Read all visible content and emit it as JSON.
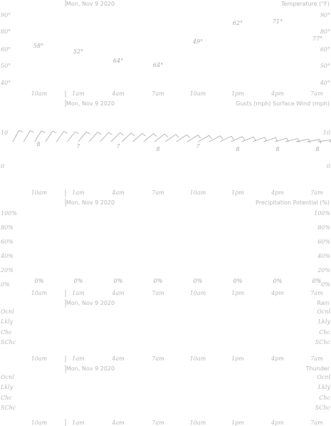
{
  "colors": {
    "text": "#b8b8b8",
    "barb": "#b0b0b0",
    "background": "#ffffff"
  },
  "time_ticks": [
    "10am",
    "1am",
    "4am",
    "7am",
    "10am",
    "1pm",
    "4pm",
    "7am"
  ],
  "date_label": "Mon, Nov 9 2020",
  "chart_data": [
    {
      "type": "line",
      "title": "Temperature (°F)",
      "y_ticks": [
        "90°",
        "80°",
        "60°",
        "50°",
        "40°"
      ],
      "labels": [
        "58°",
        "52°",
        "64°",
        "64°",
        "49°",
        "62°",
        "71°",
        "77°",
        "64°"
      ]
    },
    {
      "type": "wind-barbs",
      "title": "Gusts (mph) Surface Wind (mph)",
      "y_ticks": [
        "10",
        "0"
      ],
      "gust_labels": [
        "8",
        "7",
        "7",
        "8",
        "7",
        "8",
        "8",
        "8"
      ],
      "barb_count": 30
    },
    {
      "type": "bar",
      "title": "Precipitation Potential (%)",
      "y_ticks": [
        "100%",
        "80%",
        "60%",
        "40%",
        "20%",
        "0%"
      ],
      "labels": [
        "0%",
        "0%",
        "0%",
        "0%",
        "0%",
        "0%",
        "0%",
        "0%"
      ]
    },
    {
      "type": "heatmap",
      "title": "Rain",
      "categories": [
        "Ocnl",
        "Lkly",
        "Chc",
        "SChc"
      ]
    },
    {
      "type": "heatmap",
      "title": "Thunder",
      "categories": [
        "Ocnl",
        "Lkly",
        "Chc",
        "SChc"
      ]
    }
  ]
}
